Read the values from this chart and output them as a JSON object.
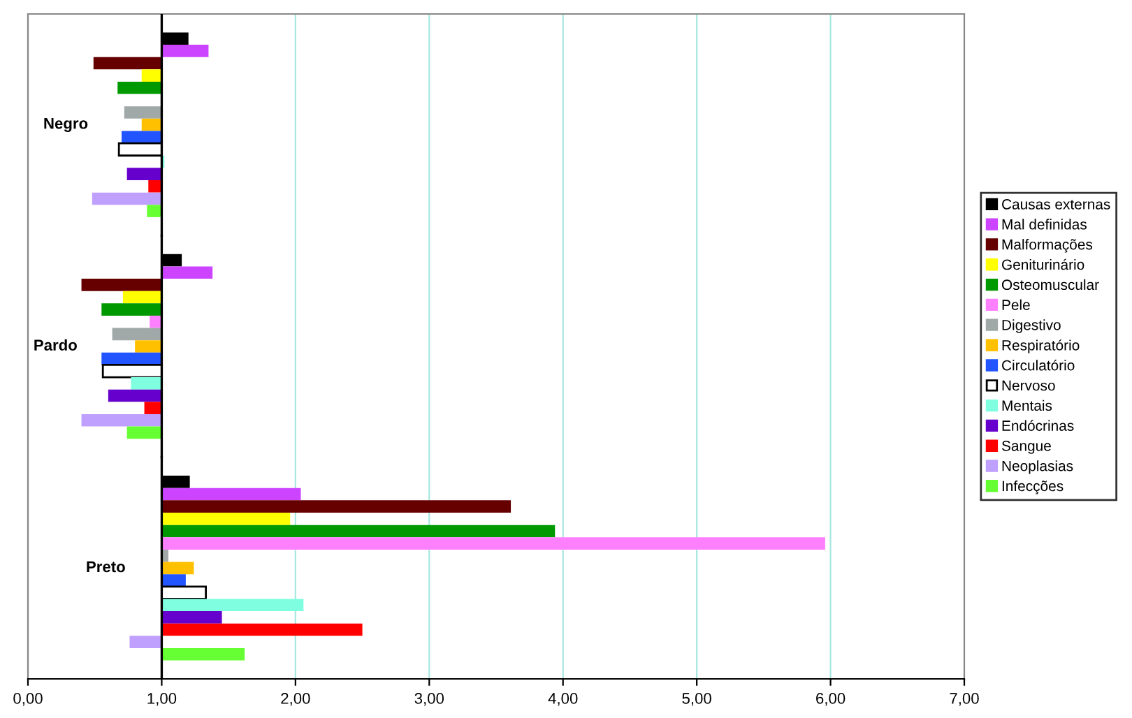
{
  "chart_data": {
    "type": "bar",
    "orientation": "horizontal",
    "categories": [
      "Negro",
      "Pardo",
      "Preto"
    ],
    "series": [
      {
        "name": "Causas externas",
        "color": "#000000",
        "base": [
          1,
          1,
          1
        ],
        "values": [
          0.2,
          0.15,
          0.21
        ]
      },
      {
        "name": "Mal definidas",
        "color": "#cc44ff",
        "base": [
          1,
          1,
          1
        ],
        "values": [
          0.35,
          0.38,
          1.04
        ]
      },
      {
        "name": "Malformações",
        "color": "#660000",
        "base": [
          1,
          1,
          1
        ],
        "values": [
          -0.51,
          -0.6,
          2.61
        ]
      },
      {
        "name": "Geniturinário",
        "color": "#ffff00",
        "base": [
          1,
          1,
          1
        ],
        "values": [
          -0.15,
          -0.29,
          0.96
        ]
      },
      {
        "name": "Osteomuscular",
        "color": "#009900",
        "base": [
          1,
          1,
          1
        ],
        "values": [
          -0.33,
          -0.45,
          2.94
        ]
      },
      {
        "name": "Pele",
        "color": "#ff80ff",
        "base": [
          null,
          1,
          1
        ],
        "values": [
          null,
          -0.09,
          4.96
        ]
      },
      {
        "name": "Digestivo",
        "color": "#a0a8a8",
        "base": [
          1,
          1,
          1
        ],
        "values": [
          -0.28,
          -0.37,
          0.05
        ]
      },
      {
        "name": "Respiratório",
        "color": "#ffc000",
        "base": [
          1,
          1,
          1
        ],
        "values": [
          -0.15,
          -0.2,
          0.24
        ]
      },
      {
        "name": "Circulatório",
        "color": "#2255ff",
        "base": [
          1,
          1,
          1
        ],
        "values": [
          -0.3,
          -0.45,
          0.18
        ]
      },
      {
        "name": "Nervoso",
        "color": "#ffffff",
        "base": [
          1,
          1,
          1
        ],
        "values": [
          -0.32,
          -0.44,
          0.33
        ]
      },
      {
        "name": "Mentais",
        "color": "#80ffe0",
        "base": [
          1,
          1,
          1
        ],
        "values": [
          0.02,
          -0.23,
          1.06
        ]
      },
      {
        "name": "Endócrinas",
        "color": "#6600cc",
        "base": [
          1,
          1,
          1
        ],
        "values": [
          -0.26,
          -0.4,
          0.45
        ]
      },
      {
        "name": "Sangue",
        "color": "#ff0000",
        "base": [
          1,
          1,
          1
        ],
        "values": [
          -0.1,
          -0.13,
          1.5
        ]
      },
      {
        "name": "Neoplasias",
        "color": "#c0a0ff",
        "base": [
          1,
          1,
          1
        ],
        "values": [
          -0.52,
          -0.6,
          -0.24
        ]
      },
      {
        "name": "Infecções",
        "color": "#66ff33",
        "base": [
          1,
          1,
          1
        ],
        "values": [
          -0.11,
          -0.26,
          0.62
        ]
      }
    ],
    "xlim": [
      0,
      7
    ],
    "xticks": [
      {
        "value": 0,
        "label": "0,00"
      },
      {
        "value": 1,
        "label": "1,00"
      },
      {
        "value": 2,
        "label": "2,00"
      },
      {
        "value": 3,
        "label": "3,00"
      },
      {
        "value": 4,
        "label": "4,00"
      },
      {
        "value": 5,
        "label": "5,00"
      },
      {
        "value": 6,
        "label": "6,00"
      },
      {
        "value": 7,
        "label": "7,00"
      }
    ],
    "grid": "x",
    "legend": "right"
  }
}
